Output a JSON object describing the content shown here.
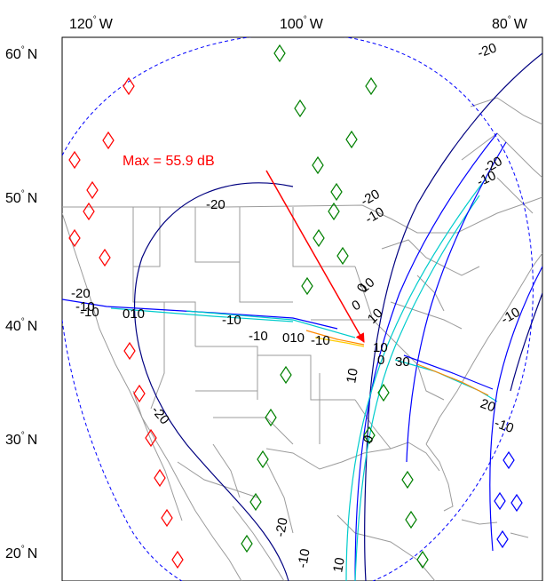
{
  "map": {
    "lon_labels": [
      {
        "value": "120",
        "unit": "°",
        "hemi": "W"
      },
      {
        "value": "100",
        "unit": "°",
        "hemi": "W"
      },
      {
        "value": "80",
        "unit": "°",
        "hemi": "W"
      }
    ],
    "lat_labels": [
      {
        "value": "60",
        "unit": "°",
        "hemi": "N"
      },
      {
        "value": "50",
        "unit": "°",
        "hemi": "N"
      },
      {
        "value": "40",
        "unit": "°",
        "hemi": "N"
      },
      {
        "value": "30",
        "unit": "°",
        "hemi": "N"
      },
      {
        "value": "20",
        "unit": "°",
        "hemi": "N"
      }
    ],
    "annotation": {
      "text": "Max = 55.9 dB",
      "color": "#ff0000"
    },
    "contour_labels": [
      "-20",
      "-20",
      "-20",
      "-20",
      "-10",
      "-10",
      "-10",
      "-10",
      "-10",
      "-10",
      "0",
      "10",
      "010",
      "010",
      "-20",
      "-20",
      "-10",
      "0",
      "10",
      "10",
      "0",
      "30",
      "10",
      "-10",
      "-10",
      "20",
      "0",
      "-20",
      "-10",
      "10"
    ],
    "colors": {
      "marker_red": "#ff0000",
      "marker_green": "#008000",
      "marker_blue": "#0000ff",
      "horizon": "#0000ff",
      "borders": "#9b9b9b",
      "contour_low": "#000080",
      "contour_mid": "#0000ff",
      "contour_high": "#00cccc",
      "contour_peak": "#ff8800"
    }
  }
}
